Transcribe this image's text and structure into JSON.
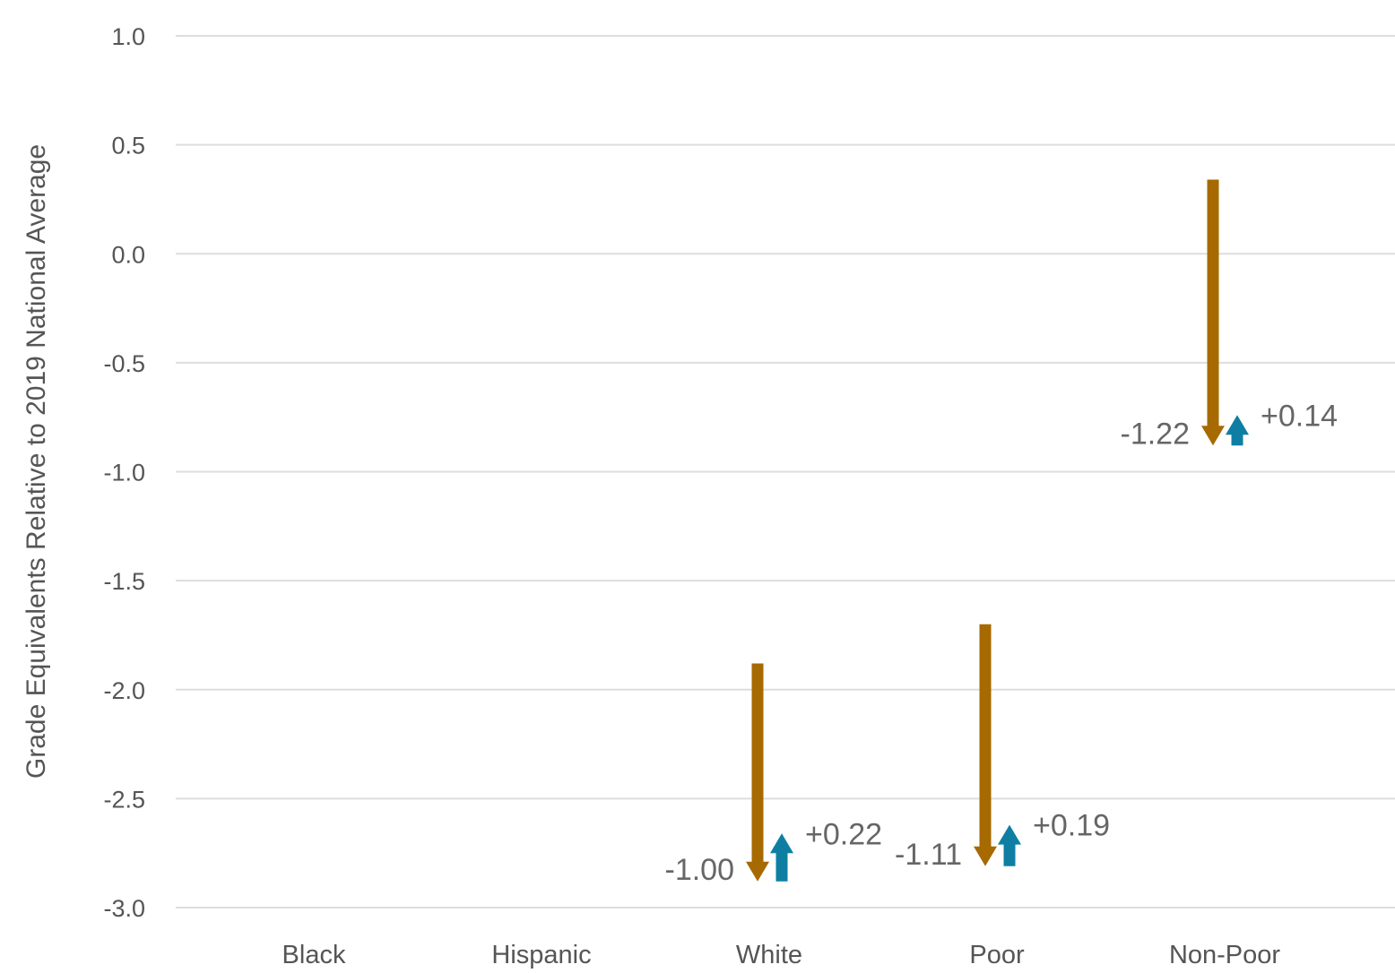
{
  "chart_data": {
    "type": "arrow",
    "ylabel": "Grade Equivalents Relative to 2019 National Average",
    "ylim": [
      -3.0,
      1.0
    ],
    "yticks": [
      "1.0",
      "0.5",
      "0.0",
      "-0.5",
      "-1.0",
      "-1.5",
      "-2.0",
      "-2.5",
      "-3.0"
    ],
    "categories": [
      "Black",
      "Hispanic",
      "White",
      "Poor",
      "Non-Poor"
    ],
    "grid": true,
    "series": [
      {
        "color": "#a66a00",
        "direction": "down",
        "points": [
          {
            "category": "White",
            "start": -1.88,
            "end": -2.88,
            "label": "-1.00"
          },
          {
            "category": "Poor",
            "start": -1.7,
            "end": -2.81,
            "label": "-1.11"
          },
          {
            "category": "Non-Poor",
            "start": 0.34,
            "end": -0.88,
            "label": "-1.22"
          }
        ]
      },
      {
        "color": "#0e7fa3",
        "direction": "up",
        "points": [
          {
            "category": "White",
            "start": -2.88,
            "end": -2.66,
            "label": "+0.22"
          },
          {
            "category": "Poor",
            "start": -2.81,
            "end": -2.62,
            "label": "+0.19"
          },
          {
            "category": "Non-Poor",
            "start": -0.88,
            "end": -0.74,
            "label": "+0.14"
          }
        ]
      }
    ]
  }
}
